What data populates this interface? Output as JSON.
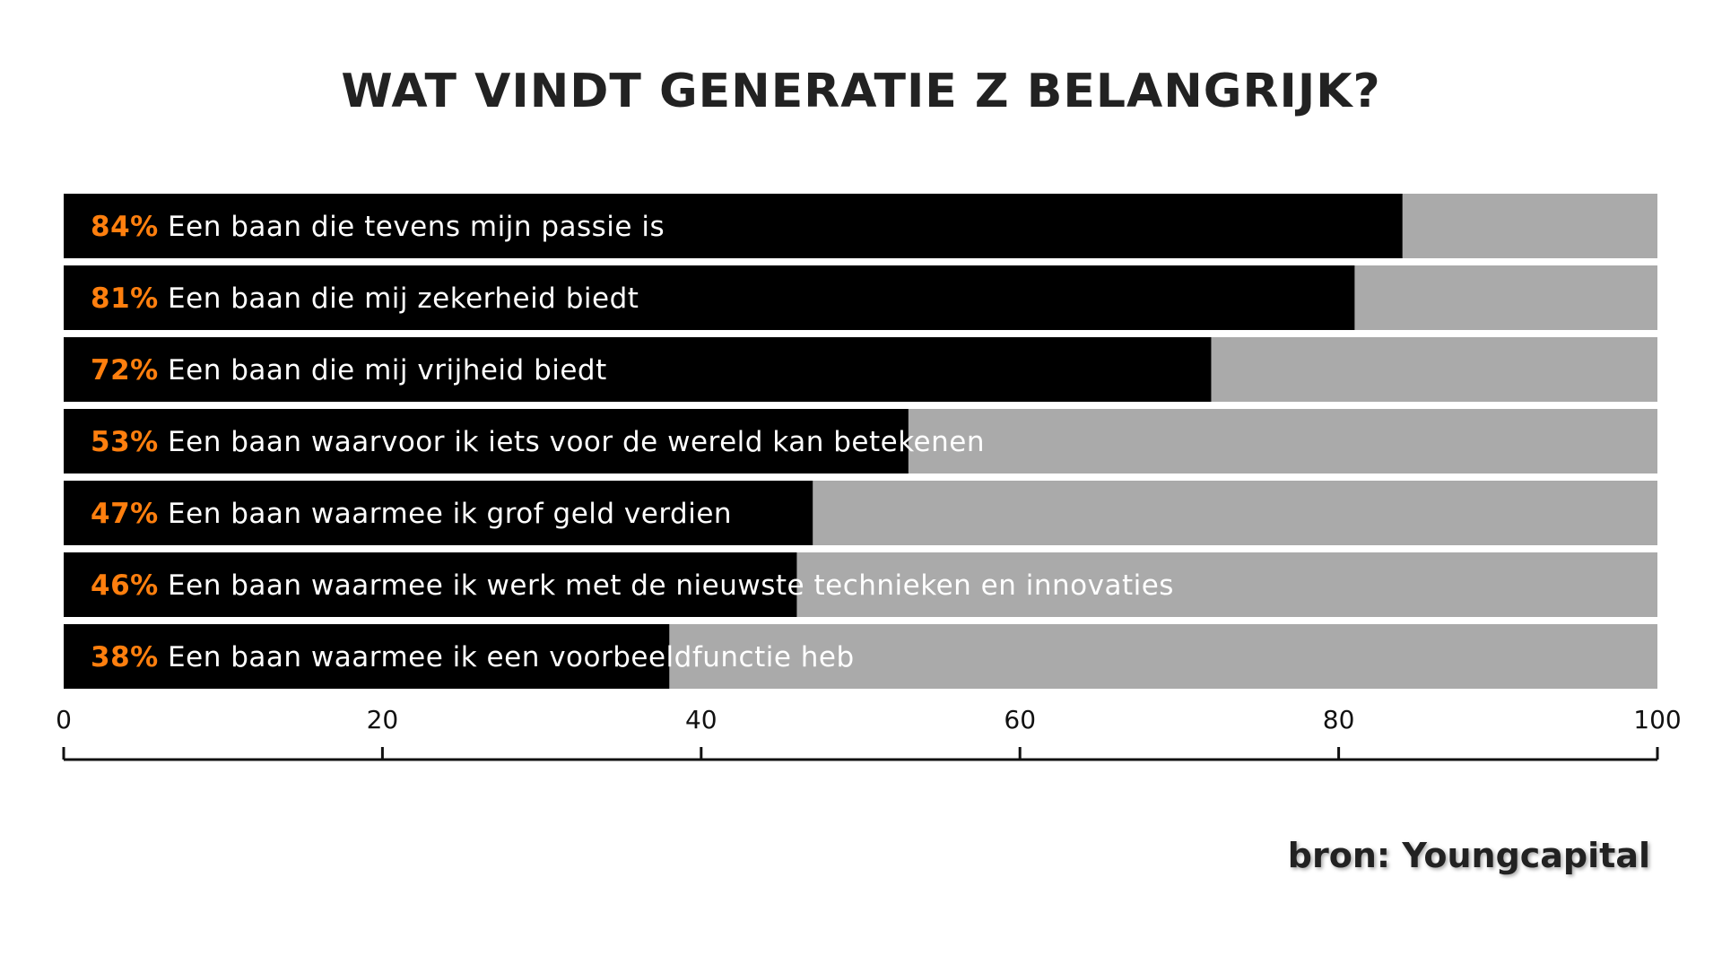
{
  "chart_data": {
    "type": "bar",
    "orientation": "horizontal",
    "stacked_to_total": 100,
    "title": "WAT VINDT GENERATIE Z BELANGRIJK?",
    "categories": [
      "Een baan die tevens mijn passie is",
      "Een baan die mij zekerheid biedt",
      "Een baan die mij vrijheid biedt",
      "Een baan waarvoor ik iets voor de wereld kan betekenen",
      "Een baan waarmee ik grof geld verdien",
      "Een baan waarmee ik werk met de nieuwste technieken en innovaties",
      "Een baan waarmee ik een voorbeeldfunctie heb"
    ],
    "values": [
      84,
      81,
      72,
      53,
      47,
      46,
      38
    ],
    "value_labels": [
      "84%",
      "81%",
      "72%",
      "53%",
      "47%",
      "46%",
      "38%"
    ],
    "xlim": [
      0,
      100
    ],
    "x_ticks": [
      0,
      20,
      40,
      60,
      80,
      100
    ],
    "x_tick_labels": [
      "0",
      "20",
      "40",
      "60",
      "80",
      "100"
    ],
    "grid": false,
    "legend": "none",
    "colors": {
      "bar": "#000000",
      "remainder": "#aaaaaa",
      "percent_text": "#ff7f0e",
      "label_text": "#ffffff",
      "axis": "#111111",
      "title": "#222222"
    }
  },
  "source": "bron: Youngcapital"
}
